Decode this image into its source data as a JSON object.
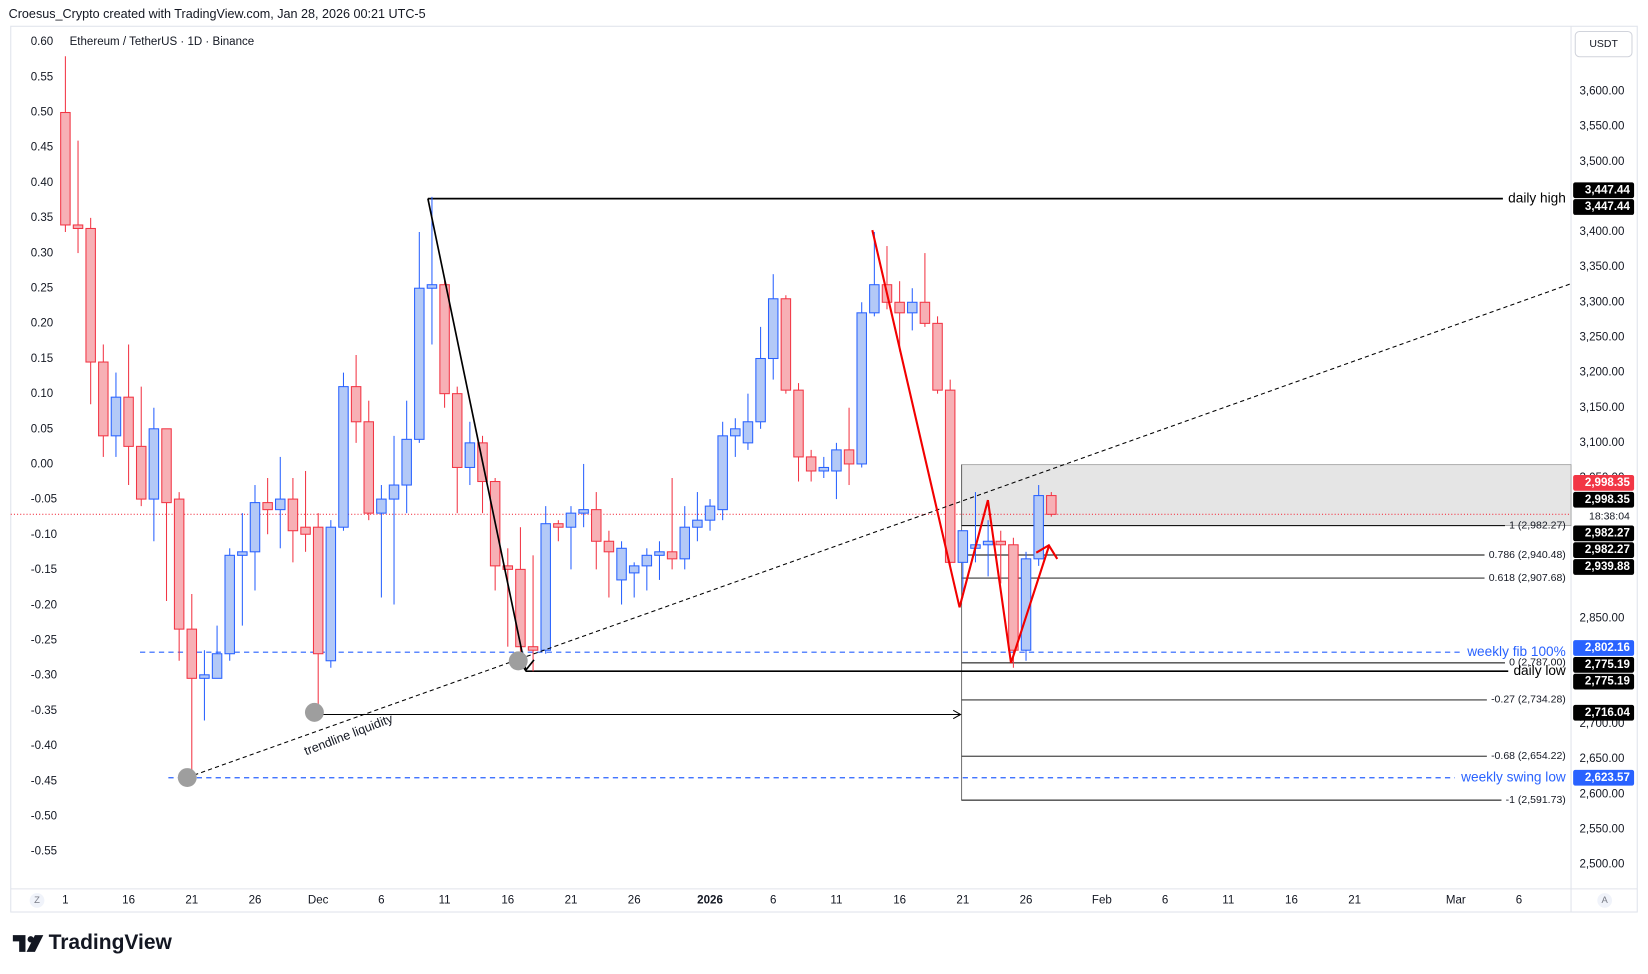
{
  "header": "Croesus_Crypto created with TradingView.com, Jan 28, 2026 00:21 UTC-5",
  "footer_brand": "TradingView",
  "chart_data": {
    "type": "candlestick",
    "title": "Ethereum / TetherUS · 1D · Binance",
    "currency": "USDT",
    "scale_buttons": [
      "Z",
      "A"
    ],
    "up_color": "#2962ff",
    "up_fill": "#b3c9f7",
    "down_color": "#f23645",
    "down_fill": "#f7b0b5",
    "grid": false,
    "categories": [
      "1",
      null,
      null,
      null,
      null,
      "16",
      null,
      null,
      null,
      null,
      "21",
      null,
      null,
      null,
      null,
      "26",
      null,
      null,
      null,
      null,
      "Dec",
      null,
      null,
      null,
      null,
      "6",
      null,
      null,
      null,
      null,
      "11",
      null,
      null,
      null,
      null,
      "16",
      null,
      null,
      null,
      null,
      "21",
      null,
      null,
      null,
      null,
      "26",
      null,
      null,
      null,
      null,
      null,
      "2026",
      null,
      null,
      null,
      null,
      "6",
      null,
      null,
      null,
      null,
      "11",
      null,
      null,
      null,
      null,
      "16",
      null,
      null,
      null,
      null,
      "21",
      null,
      null,
      null,
      null,
      "26",
      null,
      null,
      null,
      null,
      null,
      "Feb",
      null,
      null,
      null,
      null,
      "6",
      null,
      null,
      null,
      null,
      "11",
      null,
      null,
      null,
      null,
      "16",
      null,
      null,
      null,
      null,
      "21",
      null,
      null,
      null,
      null,
      null,
      null,
      null,
      "Mar",
      null,
      null,
      null,
      null,
      "6"
    ],
    "open": [
      3570,
      3410,
      3405,
      3215,
      3110,
      3165,
      3095,
      3020,
      3120,
      3020,
      2835,
      2765,
      2765,
      2800,
      2940,
      2945,
      3015,
      3005,
      3020,
      2980,
      2980,
      2790,
      2980,
      3180,
      3130,
      3000,
      3020,
      3040,
      3105,
      3320,
      3325,
      3170,
      3065,
      3100,
      3045,
      2925,
      2920,
      2810,
      2805,
      2985,
      2980,
      3000,
      3005,
      2960,
      2905,
      2915,
      2925,
      2940,
      2945,
      2935,
      2980,
      2990,
      3005,
      3110,
      3100,
      3130,
      3220,
      3305,
      3175,
      3080,
      3060,
      3060,
      3090,
      3070,
      3285,
      3325,
      3300,
      3285,
      3300,
      3270,
      3175,
      2930,
      2950,
      2955,
      2960,
      2955,
      2805,
      2935,
      3025,
      null,
      null,
      null,
      null,
      null,
      null,
      null,
      null,
      null,
      null,
      null,
      null,
      null,
      null,
      null,
      null,
      null,
      null,
      null,
      null,
      null,
      null,
      null,
      null,
      null,
      null,
      null,
      null,
      null,
      null,
      null,
      null,
      null,
      null,
      null,
      null,
      null
    ],
    "high": [
      3650,
      3530,
      3420,
      3240,
      3200,
      3240,
      3180,
      3150,
      3120,
      3030,
      2885,
      2805,
      2840,
      2950,
      3000,
      3040,
      3050,
      3080,
      3050,
      3060,
      3000,
      2990,
      3200,
      3225,
      3160,
      3040,
      3110,
      3160,
      3400,
      3450,
      3335,
      3180,
      3130,
      3110,
      3050,
      2950,
      2980,
      2940,
      3010,
      2990,
      3010,
      3070,
      3030,
      2975,
      2960,
      2930,
      2950,
      2960,
      3050,
      3010,
      3030,
      3020,
      3130,
      3135,
      3170,
      3265,
      3340,
      3310,
      3185,
      3090,
      3080,
      3100,
      3150,
      3300,
      3400,
      3380,
      3330,
      3320,
      3370,
      3280,
      3190,
      2975,
      3030,
      2990,
      2975,
      2965,
      2945,
      3040,
      3030,
      null,
      null,
      null,
      null,
      null,
      null,
      null,
      null,
      null,
      null,
      null,
      null,
      null,
      null,
      null,
      null,
      null,
      null,
      null,
      null,
      null,
      null,
      null,
      null,
      null,
      null,
      null,
      null,
      null,
      null,
      null,
      null,
      null,
      null,
      null,
      null,
      null
    ],
    "low": [
      3400,
      3370,
      3155,
      3080,
      3080,
      3040,
      3010,
      2960,
      2875,
      2790,
      2624,
      2705,
      2765,
      2790,
      2840,
      2890,
      2970,
      2950,
      2930,
      2945,
      2713,
      2780,
      2975,
      3100,
      2990,
      2880,
      2870,
      3000,
      3100,
      3240,
      3150,
      3000,
      3040,
      3000,
      2890,
      2810,
      2800,
      2775,
      2800,
      2960,
      2920,
      2980,
      2920,
      2880,
      2870,
      2880,
      2890,
      2905,
      2920,
      2920,
      2960,
      2975,
      2990,
      3080,
      3090,
      3120,
      3190,
      3170,
      3045,
      3045,
      3050,
      3020,
      3040,
      3065,
      3280,
      3290,
      3230,
      3260,
      3265,
      3170,
      2920,
      2880,
      2930,
      2910,
      2900,
      2780,
      2790,
      2925,
      2995,
      null,
      null,
      null,
      null,
      null,
      null,
      null,
      null,
      null,
      null,
      null,
      null,
      null,
      null,
      null,
      null,
      null,
      null,
      null,
      null,
      null,
      null,
      null,
      null,
      null,
      null,
      null,
      null,
      null,
      null,
      null,
      null,
      null,
      null,
      null,
      null,
      null
    ],
    "close": [
      3410,
      3405,
      3215,
      3110,
      3165,
      3095,
      3020,
      3120,
      3015,
      2835,
      2765,
      2770,
      2800,
      2940,
      2945,
      3015,
      3005,
      3020,
      2975,
      2970,
      2800,
      2980,
      3180,
      3130,
      3000,
      3020,
      3040,
      3105,
      3320,
      3325,
      3170,
      3065,
      3100,
      3045,
      2925,
      2920,
      2810,
      2805,
      2985,
      2980,
      3000,
      3005,
      2960,
      2945,
      2950,
      2925,
      2940,
      2945,
      2935,
      2980,
      2990,
      3010,
      3110,
      3120,
      3130,
      3220,
      3305,
      3175,
      3080,
      3060,
      3065,
      3090,
      3070,
      3285,
      3325,
      3300,
      3285,
      3300,
      3270,
      3175,
      2930,
      2975,
      2955,
      2960,
      2955,
      2805,
      2935,
      3025,
      2998.35,
      null,
      null,
      null,
      null,
      null,
      null,
      null,
      null,
      null,
      null,
      null,
      null,
      null,
      null,
      null,
      null,
      null,
      null,
      null,
      null,
      null,
      null,
      null,
      null,
      null,
      null,
      null,
      null,
      null,
      null,
      null,
      null,
      null,
      null,
      null,
      null,
      null
    ],
    "ylim": [
      2474.4,
      3688.2
    ],
    "yticks": [
      {
        "value": 3600,
        "label": "3,600.00"
      },
      {
        "value": 3550,
        "label": "3,550.00"
      },
      {
        "value": 3500,
        "label": "3,500.00"
      },
      {
        "value": 3400,
        "label": "3,400.00"
      },
      {
        "value": 3350,
        "label": "3,350.00"
      },
      {
        "value": 3300,
        "label": "3,300.00"
      },
      {
        "value": 3250,
        "label": "3,250.00"
      },
      {
        "value": 3200,
        "label": "3,200.00"
      },
      {
        "value": 3150,
        "label": "3,150.00"
      },
      {
        "value": 3100,
        "label": "3,100.00"
      },
      {
        "value": 3050,
        "label": "3,050.00"
      },
      {
        "value": 2850,
        "label": "2,850.00"
      },
      {
        "value": 2700,
        "label": "2,700.00"
      },
      {
        "value": 2650,
        "label": "2,650.00"
      },
      {
        "value": 2600,
        "label": "2,600.00"
      },
      {
        "value": 2550,
        "label": "2,550.00"
      },
      {
        "value": 2500,
        "label": "2,500.00"
      }
    ],
    "y2lim": [
      -0.594,
      0.618
    ],
    "y2ticks": [
      {
        "value": 0.6,
        "label": "0.60"
      },
      0.55,
      {
        "value": 0.5,
        "label": "0.50"
      },
      0.45,
      {
        "value": 0.4,
        "label": "0.40"
      },
      0.35,
      {
        "value": 0.3,
        "label": "0.30"
      },
      0.25,
      {
        "value": 0.2,
        "label": "0.20"
      },
      0.15,
      {
        "value": 0.1,
        "label": "0.10"
      },
      0.05,
      {
        "value": 0,
        "label": "0.00"
      },
      -0.05,
      {
        "value": -0.1,
        "label": "-0.10"
      },
      -0.15,
      {
        "value": -0.2,
        "label": "-0.20"
      },
      -0.25,
      {
        "value": -0.3,
        "label": "-0.30"
      },
      -0.35,
      {
        "value": -0.4,
        "label": "-0.40"
      },
      -0.45,
      {
        "value": -0.5,
        "label": "-0.50"
      },
      -0.55
    ],
    "levels": [
      {
        "label": "daily high",
        "value": 3447.44,
        "color": "#000000",
        "dash": false
      },
      {
        "label": "weekly fib 100%",
        "value": 2802.16,
        "color": "#2962ff",
        "dash": true
      },
      {
        "label": "daily low",
        "value": 2775.19,
        "color": "#000000",
        "dash": false
      },
      {
        "label": "weekly swing low",
        "value": 2623.57,
        "color": "#2962ff",
        "dash": true
      }
    ],
    "fib_levels": [
      {
        "label": "1 (2,982.27)",
        "value": 2982.27
      },
      {
        "label": "0.786 (2,940.48)",
        "value": 2940.48
      },
      {
        "label": "0.618 (2,907.68)",
        "value": 2907.68
      },
      {
        "label": "0 (2,787.00)",
        "value": 2787.0
      },
      {
        "label": "-0.27 (2,734.28)",
        "value": 2734.28
      },
      {
        "label": "-0.68 (2,654.22)",
        "value": 2654.22
      },
      {
        "label": "-1 (2,591.73)",
        "value": 2591.73
      }
    ],
    "range_box": {
      "high": 3069,
      "low": 2982.27
    },
    "drawing_text": "trendline liquidity",
    "price_labels": [
      {
        "label": "3,447.44",
        "value": 3447.44,
        "color": "#000000"
      },
      {
        "label": "3,447.44",
        "value": 3447.44,
        "color": "#000000"
      },
      {
        "label": "2,998.35",
        "value": 2998.35,
        "color": "#f23645"
      },
      {
        "label": "2,998.35",
        "value": 2998.35,
        "color": "#000000"
      },
      {
        "label": "18:38:04"
      },
      {
        "label": "2,982.27",
        "value": 2982.27,
        "color": "#000000"
      },
      {
        "label": "2,982.27",
        "value": 2982.27,
        "color": "#000000"
      },
      {
        "label": "2,939.88",
        "value": 2939.88,
        "color": "#000000"
      },
      {
        "label": "2,802.16",
        "value": 2802.16,
        "color": "#2962ff"
      },
      {
        "label": "2,775.19",
        "value": 2775.19,
        "color": "#000000"
      },
      {
        "label": "2,775.19",
        "value": 2775.19,
        "color": "#000000"
      },
      {
        "label": "2,716.04",
        "value": 2716.04,
        "color": "#000000"
      },
      {
        "label": "2,623.57",
        "value": 2623.57,
        "color": "#2962ff"
      }
    ]
  }
}
